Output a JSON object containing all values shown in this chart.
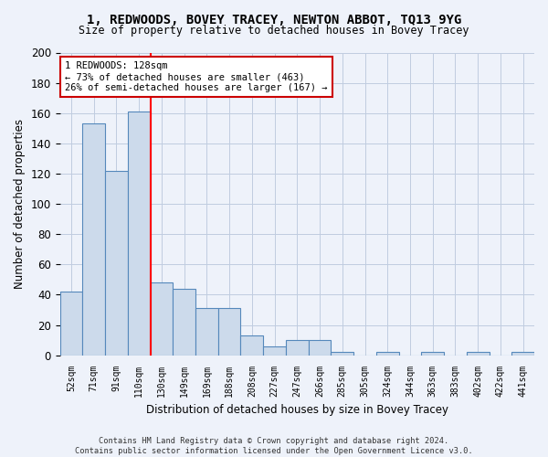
{
  "title": "1, REDWOODS, BOVEY TRACEY, NEWTON ABBOT, TQ13 9YG",
  "subtitle": "Size of property relative to detached houses in Bovey Tracey",
  "xlabel": "Distribution of detached houses by size in Bovey Tracey",
  "ylabel": "Number of detached properties",
  "categories": [
    "52sqm",
    "71sqm",
    "91sqm",
    "110sqm",
    "130sqm",
    "149sqm",
    "169sqm",
    "188sqm",
    "208sqm",
    "227sqm",
    "247sqm",
    "266sqm",
    "285sqm",
    "305sqm",
    "324sqm",
    "344sqm",
    "363sqm",
    "383sqm",
    "402sqm",
    "422sqm",
    "441sqm"
  ],
  "values": [
    42,
    153,
    122,
    161,
    48,
    44,
    31,
    31,
    13,
    6,
    10,
    10,
    2,
    0,
    2,
    0,
    2,
    0,
    2,
    0,
    2
  ],
  "bar_color": "#ccdaeb",
  "bar_edge_color": "#5588bb",
  "redline_index": 3.5,
  "annotation_text": "1 REDWOODS: 128sqm\n← 73% of detached houses are smaller (463)\n26% of semi-detached houses are larger (167) →",
  "annotation_box_color": "#ffffff",
  "annotation_box_edge": "#cc0000",
  "ylim": [
    0,
    200
  ],
  "yticks": [
    0,
    20,
    40,
    60,
    80,
    100,
    120,
    140,
    160,
    180,
    200
  ],
  "footnote": "Contains HM Land Registry data © Crown copyright and database right 2024.\nContains public sector information licensed under the Open Government Licence v3.0.",
  "bg_color": "#eef2fa",
  "grid_color": "#c0cce0",
  "title_fontsize": 10,
  "subtitle_fontsize": 8.5
}
